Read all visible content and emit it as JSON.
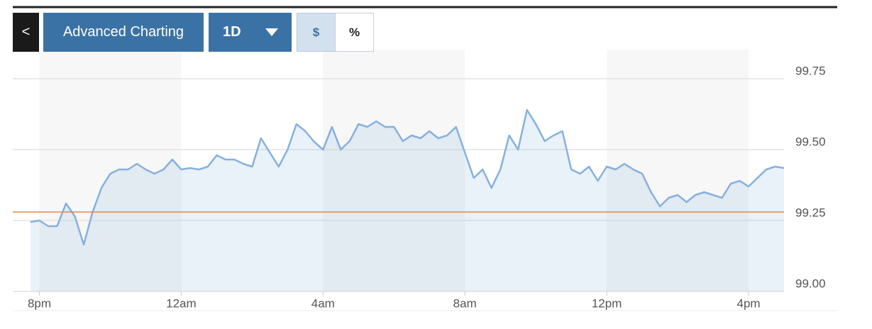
{
  "toolbar": {
    "back": "<",
    "title": "Advanced Charting",
    "range": "1D",
    "currency": "$",
    "percent": "%"
  },
  "chart_data": {
    "type": "line",
    "categories": [
      null,
      "8pm",
      null,
      null,
      null,
      null,
      null,
      null,
      null,
      null,
      null,
      null,
      null,
      null,
      null,
      null,
      null,
      "12am",
      null,
      null,
      null,
      null,
      null,
      null,
      null,
      null,
      null,
      null,
      null,
      null,
      null,
      null,
      null,
      "4am",
      null,
      null,
      null,
      null,
      null,
      null,
      null,
      null,
      null,
      null,
      null,
      null,
      null,
      null,
      null,
      "8am",
      null,
      null,
      null,
      null,
      null,
      null,
      null,
      null,
      null,
      null,
      null,
      null,
      null,
      null,
      null,
      "12pm",
      null,
      null,
      null,
      null,
      null,
      null,
      null,
      null,
      null,
      null,
      null,
      null,
      null,
      null,
      null,
      "4pm",
      null,
      null,
      null,
      null
    ],
    "series": [
      {
        "color": "#86b1dd",
        "values": [
          99.245,
          99.25,
          99.23,
          99.23,
          99.31,
          99.265,
          99.165,
          99.28,
          99.365,
          99.415,
          99.43,
          99.43,
          99.45,
          99.43,
          99.415,
          99.43,
          99.465,
          99.43,
          99.435,
          99.43,
          99.44,
          99.48,
          99.465,
          99.465,
          99.45,
          99.44,
          99.54,
          99.49,
          99.44,
          99.5,
          99.59,
          99.565,
          99.5275,
          99.5,
          99.58,
          99.5,
          99.53,
          99.59,
          99.58,
          99.6,
          99.58,
          99.58,
          99.53,
          99.55,
          99.54,
          99.565,
          99.54,
          99.55,
          99.58,
          99.49,
          99.4,
          99.43,
          99.365,
          99.43,
          99.55,
          99.5,
          99.64,
          99.59,
          99.53,
          99.55,
          99.565,
          99.43,
          99.415,
          99.44,
          99.39,
          99.44,
          99.43,
          99.45,
          99.43,
          99.415,
          99.35,
          99.3,
          99.33,
          99.34,
          99.315,
          99.34,
          99.35,
          99.34,
          99.33,
          99.38,
          99.39,
          99.37,
          99.4,
          99.43,
          99.44,
          99.435
        ]
      }
    ],
    "reference": {
      "value": 99.28,
      "color": "#e0884a"
    },
    "ylim": [
      99,
      99.8
    ],
    "yticks": [
      {
        "value": 99,
        "label": "99.00"
      },
      99.25,
      {
        "value": 99.5,
        "label": "99.50"
      },
      99.75
    ],
    "grid": true
  }
}
